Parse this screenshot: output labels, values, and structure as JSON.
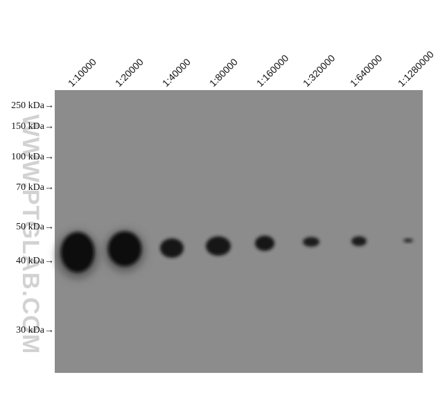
{
  "lanes": [
    "1:10000",
    "1:20000",
    "1:40000",
    "1:80000",
    "1:160000",
    "1:320000",
    "1:640000",
    "1:1280000"
  ],
  "markers": [
    "250 kDa→",
    "150 kDa→",
    "100 kDa→",
    "70 kDa→",
    "50 kDa→",
    "40 kDa→",
    "30 kDa→"
  ],
  "watermark": "WWW.PTGLAB.COM"
}
